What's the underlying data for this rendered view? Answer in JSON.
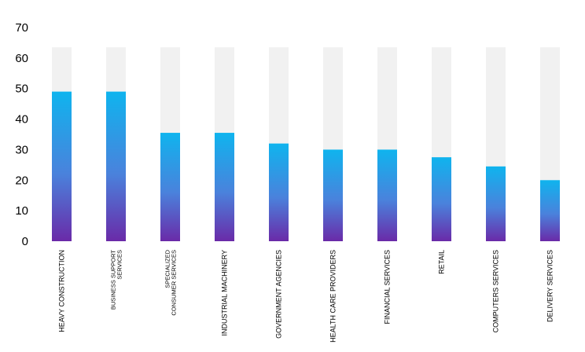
{
  "chart_data": {
    "type": "bar",
    "title": "",
    "xlabel": "",
    "ylabel": "",
    "ylim": [
      0,
      70
    ],
    "yticks": [
      0,
      10,
      20,
      30,
      40,
      50,
      60,
      70
    ],
    "background_max": 63.5,
    "grid": false,
    "legend": "none",
    "categories": [
      "HEAVY CONSTRUCTION",
      "BUSINESS SUPPORT SERVICES",
      "SPECIALIZED CONSUMER SERVICES",
      "INDUSTRIAL MACHINERY",
      "GOVERNMENT AGENCIES",
      "HEALTH CARE PROVIDERS",
      "FINANCIAL SERVICES",
      "RETAIL",
      "COMPUTERS SERVICES",
      "DELIVERY SERVICES"
    ],
    "category_lines": [
      [
        "HEAVY CONSTRUCTION"
      ],
      [
        "BUSINESS SUPPORT",
        "SERVICES"
      ],
      [
        "SPECIALIZED",
        "CONSUMER SERVICES"
      ],
      [
        "INDUSTRIAL MACHINERY"
      ],
      [
        "GOVERNMENT AGENCIES"
      ],
      [
        "HEALTH CARE PROVIDERS"
      ],
      [
        "FINANCIAL SERVICES"
      ],
      [
        "RETAIL"
      ],
      [
        "COMPUTERS SERVICES"
      ],
      [
        "DELIVERY SERVICES"
      ]
    ],
    "values": [
      49,
      49,
      35.5,
      35.5,
      32,
      30,
      30,
      27.5,
      24.5,
      20
    ],
    "colors": {
      "bar_top": "#0fb4ee",
      "bar_mid": "#4a82dc",
      "bar_bottom": "#6a2aa8",
      "background_bar": "#f1f1f1"
    }
  }
}
